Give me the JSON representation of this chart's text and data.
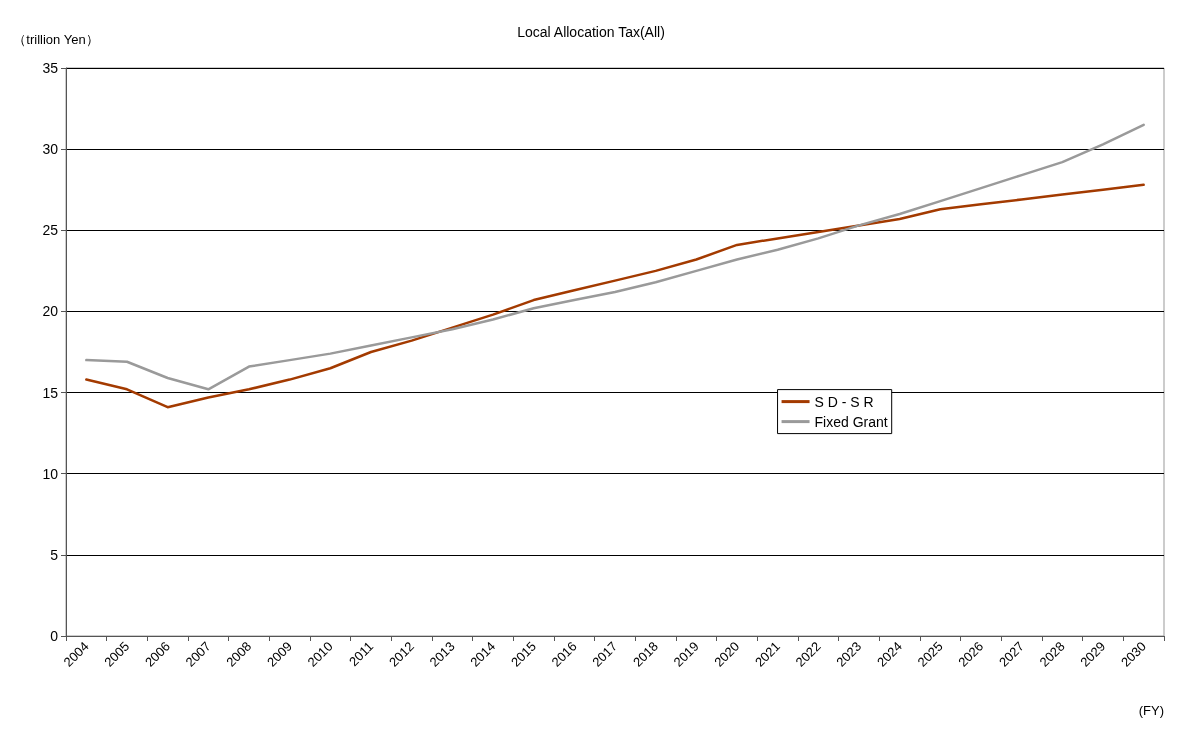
{
  "chart_data": {
    "type": "line",
    "title": "Local Allocation Tax(All)",
    "xlabel": "(FY)",
    "ylabel": "（trillion Yen）",
    "categories": [
      "2004",
      "2005",
      "2006",
      "2007",
      "2008",
      "2009",
      "2010",
      "2011",
      "2012",
      "2013",
      "2014",
      "2015",
      "2016",
      "2017",
      "2018",
      "2019",
      "2020",
      "2021",
      "2022",
      "2023",
      "2024",
      "2025",
      "2026",
      "2027",
      "2028",
      "2029",
      "2030"
    ],
    "series": [
      {
        "name": "S D - S R",
        "color": "#a33a00",
        "values": [
          15.8,
          15.2,
          14.1,
          14.7,
          15.2,
          15.8,
          16.5,
          17.5,
          18.2,
          19.0,
          19.8,
          20.7,
          21.3,
          21.9,
          22.5,
          23.2,
          24.1,
          24.5,
          24.9,
          25.3,
          25.7,
          26.3,
          26.6,
          26.9,
          27.2,
          27.5,
          27.8
        ]
      },
      {
        "name": "Fixed Grant",
        "color": "#9a9a9a",
        "values": [
          17.0,
          16.9,
          15.9,
          15.2,
          16.6,
          17.0,
          17.4,
          17.9,
          18.4,
          18.9,
          19.5,
          20.2,
          20.7,
          21.2,
          21.8,
          22.5,
          23.2,
          23.8,
          24.5,
          25.3,
          26.0,
          26.8,
          27.6,
          28.4,
          29.2,
          30.3,
          31.5
        ]
      }
    ],
    "ylim": [
      0,
      35
    ],
    "yticks": [
      0,
      5,
      10,
      15,
      20,
      25,
      30,
      35
    ],
    "grid": "y",
    "legend": "right",
    "marker": "none",
    "line_style": "solid"
  }
}
